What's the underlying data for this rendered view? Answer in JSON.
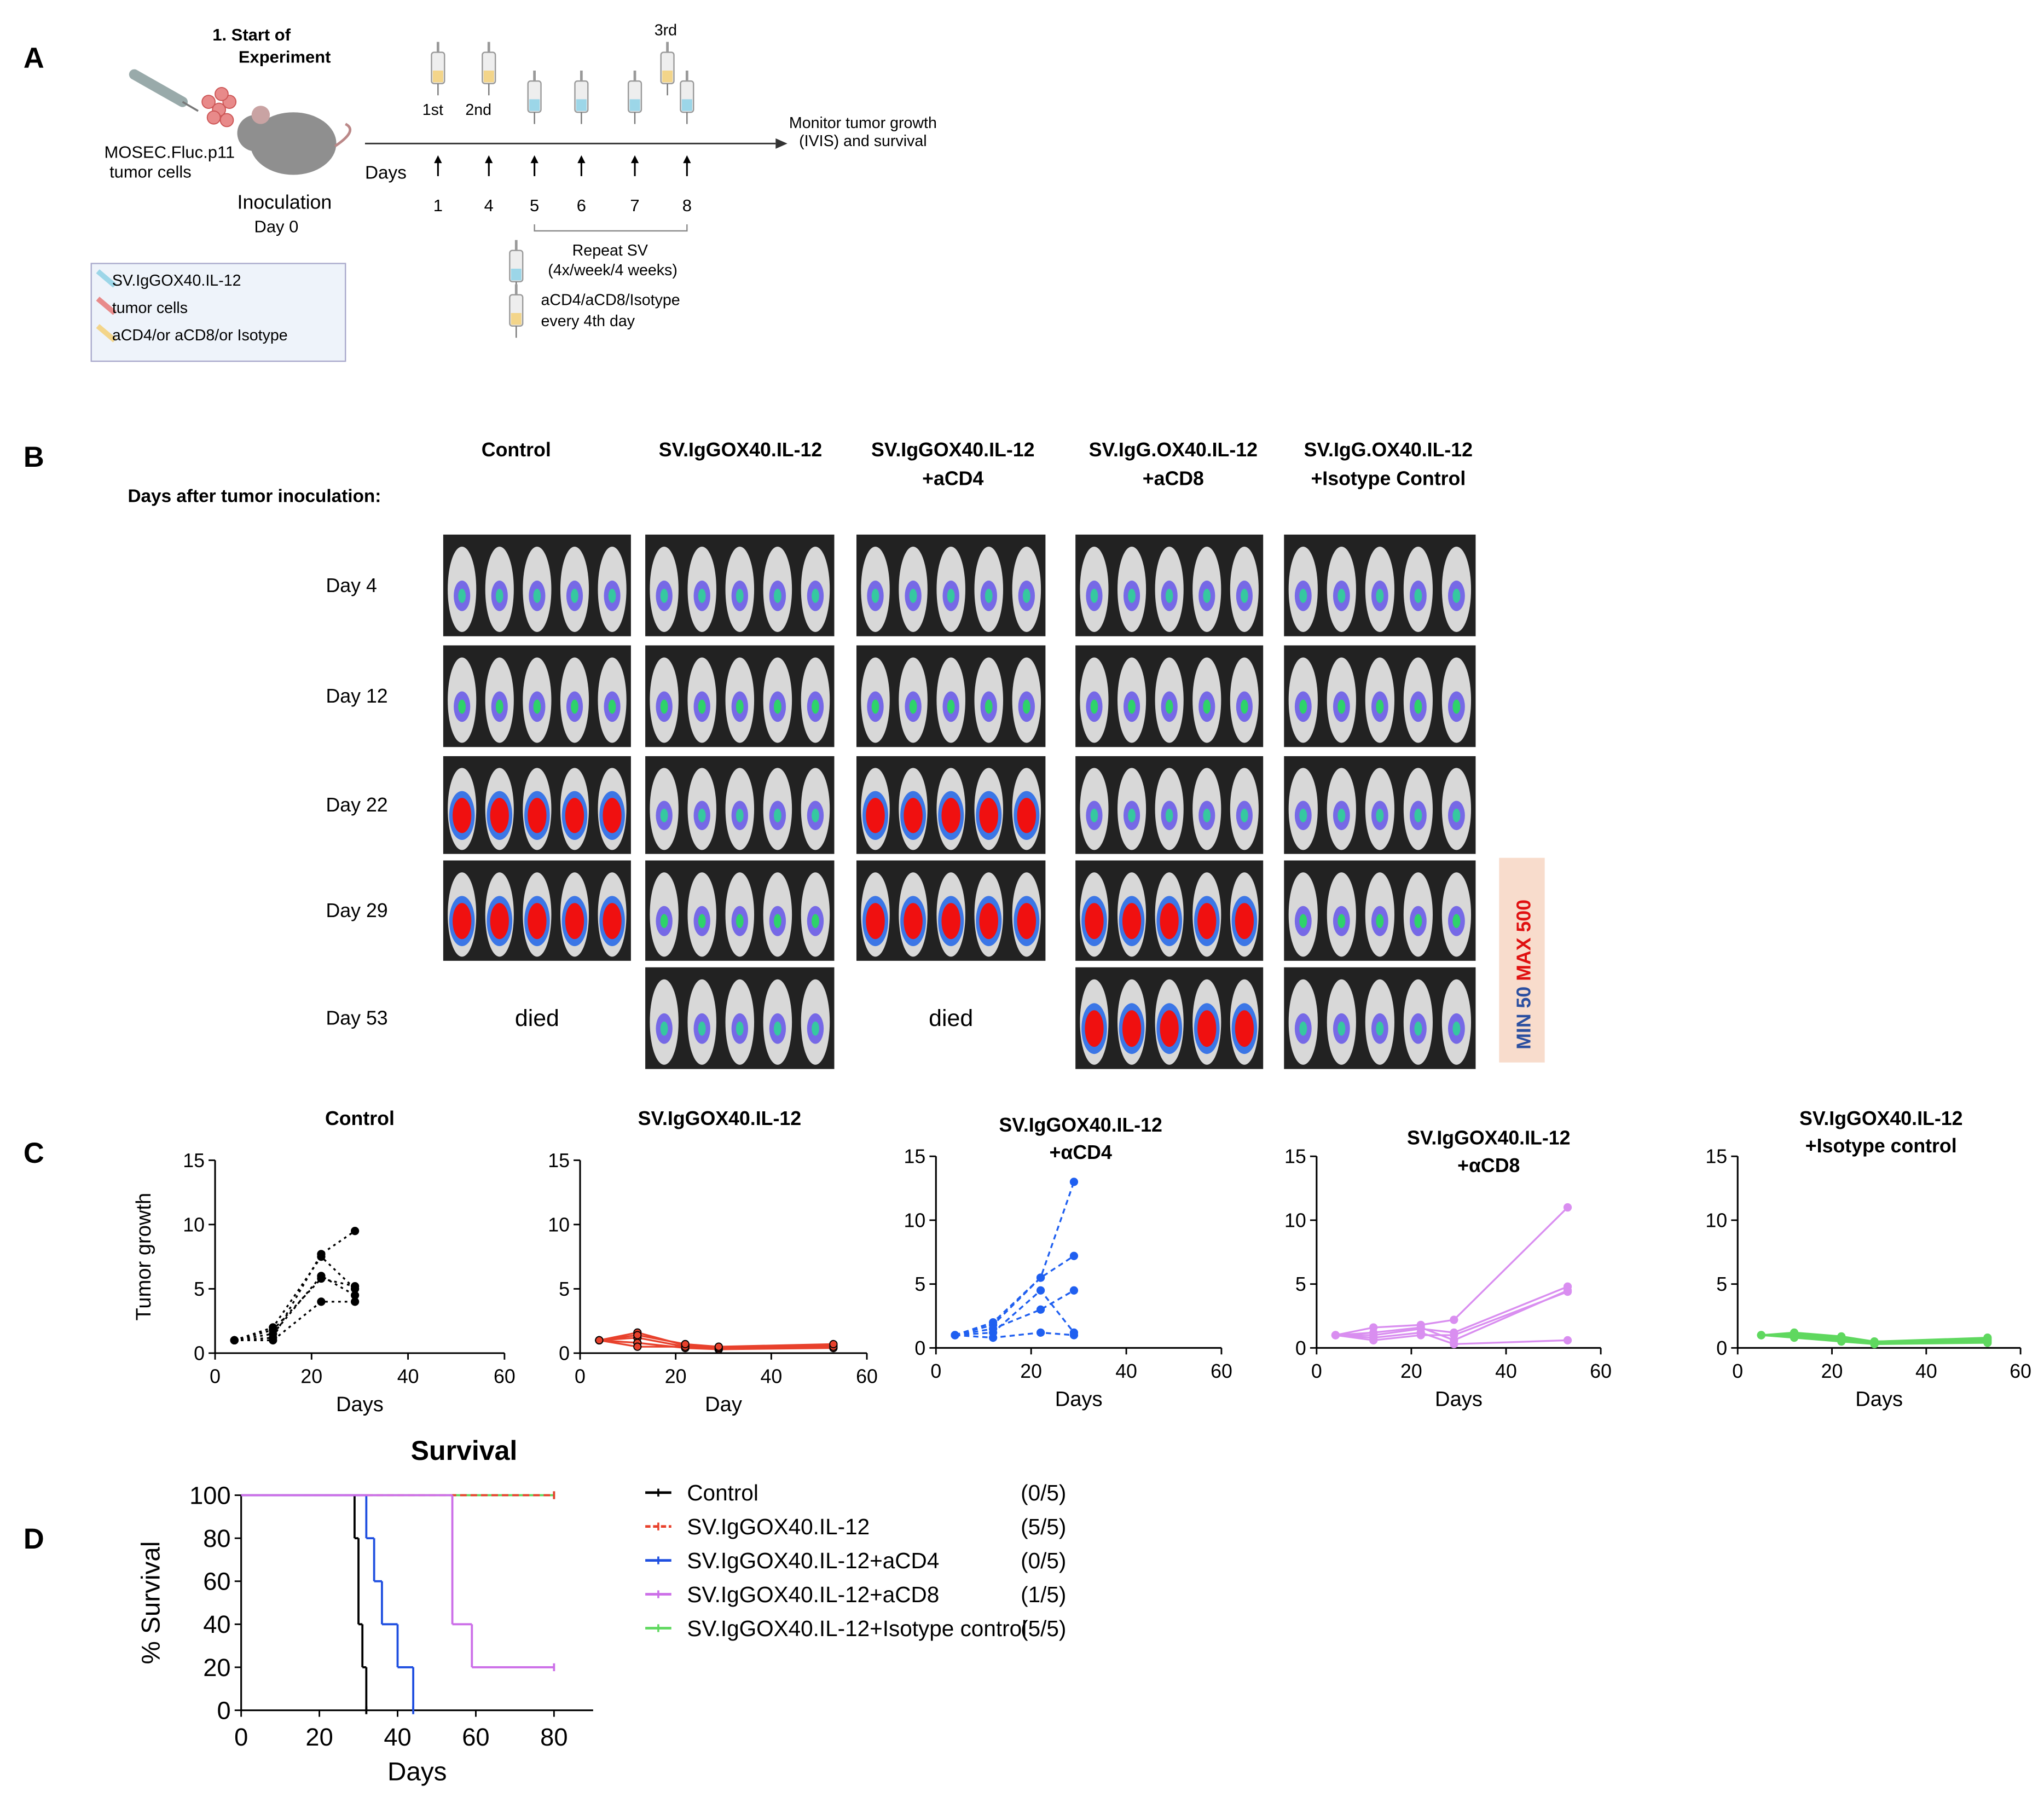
{
  "panel_a": {
    "label": "A",
    "start_title": [
      "1. Start of",
      "Experiment"
    ],
    "cells": [
      "MOSEC.Fluc.p11",
      "tumor cells"
    ],
    "inoculation": "Inoculation",
    "day0": "Day 0",
    "days_label": "Days",
    "days": [
      1,
      4,
      5,
      6,
      7,
      8
    ],
    "injections": [
      "1st",
      "2nd",
      "3rd"
    ],
    "monitor": [
      "Monitor tumor growth",
      "(IVIS) and survival"
    ],
    "repeat": [
      "Repeat SV",
      "(4x/week/4 weeks)"
    ],
    "antibody": [
      "aCD4/aCD8/Isotype",
      "every 4th day"
    ],
    "legend": [
      "SV.IgGOX40.IL-12",
      "tumor cells",
      "aCD4/or aCD8/or Isotype"
    ]
  },
  "panel_b": {
    "label": "B",
    "columns": [
      [
        "Control"
      ],
      [
        "SV.IgGOX40.IL-12"
      ],
      [
        "SV.IgGOX40.IL-12",
        "+aCD4"
      ],
      [
        "SV.IgG.OX40.IL-12",
        "+aCD8"
      ],
      [
        "SV.IgG.OX40.IL-12",
        "+Isotype Control"
      ]
    ],
    "row_heading": "Days after tumor inoculation:",
    "rows": [
      "Day 4",
      "Day 12",
      "Day 22",
      "Day 29",
      "Day 53"
    ],
    "day53_status": [
      "died",
      null,
      "died",
      null,
      null
    ],
    "scale_min": "MIN 50",
    "scale_max": "MAX 500"
  },
  "panel_c_label": "C",
  "panel_d_label": "D",
  "chart_data": [
    {
      "type": "line",
      "title": [
        "Control"
      ],
      "xlabel": "Days",
      "ylabel": "Tumor growth",
      "x": [
        4,
        12,
        22,
        29
      ],
      "xlim": [
        0,
        60
      ],
      "xticks": [
        0,
        20,
        40,
        60
      ],
      "ylim": [
        0,
        15
      ],
      "yticks": [
        0,
        5,
        10,
        15
      ],
      "dash": "dotted",
      "series": [
        {
          "color": "#000000",
          "values": [
            1,
            1.2,
            7.7,
            9.5
          ]
        },
        {
          "color": "#000000",
          "values": [
            1,
            2,
            7.5,
            5
          ]
        },
        {
          "color": "#000000",
          "values": [
            1,
            1.5,
            6,
            4.5
          ]
        },
        {
          "color": "#000000",
          "values": [
            1,
            1,
            4,
            4
          ]
        },
        {
          "color": "#000000",
          "values": [
            1,
            1.8,
            5.8,
            5.2
          ]
        }
      ]
    },
    {
      "type": "line",
      "title": [
        "SV.IgGOX40.IL-12"
      ],
      "xlabel": "Day",
      "x": [
        4,
        12,
        22,
        29,
        53
      ],
      "xlim": [
        0,
        60
      ],
      "xticks": [
        0,
        20,
        40,
        60
      ],
      "ylim": [
        0,
        15
      ],
      "yticks": [
        0,
        5,
        10,
        15
      ],
      "dash": "solid",
      "series": [
        {
          "color": "#e8412c",
          "values": [
            1,
            1.6,
            0.6,
            0.4,
            0.6
          ]
        },
        {
          "color": "#e8412c",
          "values": [
            1,
            1.2,
            0.5,
            0.3,
            0.5
          ]
        },
        {
          "color": "#e8412c",
          "values": [
            1,
            0.8,
            0.4,
            0.3,
            0.4
          ]
        },
        {
          "color": "#e8412c",
          "values": [
            1,
            0.5,
            0.5,
            0.4,
            0.5
          ]
        },
        {
          "color": "#e8412c",
          "values": [
            1,
            1.4,
            0.7,
            0.5,
            0.7
          ]
        }
      ]
    },
    {
      "type": "line",
      "title": [
        "SV.IgGOX40.IL-12",
        "+αCD4"
      ],
      "xlabel": "Days",
      "x": [
        4,
        12,
        22,
        29
      ],
      "xlim": [
        0,
        60
      ],
      "xticks": [
        0,
        20,
        40,
        60
      ],
      "ylim": [
        0,
        15
      ],
      "yticks": [
        0,
        5,
        10,
        15
      ],
      "dash": "dashed",
      "series": [
        {
          "color": "#1f5ff0",
          "values": [
            1,
            2,
            5.5,
            13
          ]
        },
        {
          "color": "#1f5ff0",
          "values": [
            1,
            1.8,
            5.5,
            7.2
          ]
        },
        {
          "color": "#1f5ff0",
          "values": [
            1,
            1.5,
            3,
            4.5
          ]
        },
        {
          "color": "#1f5ff0",
          "values": [
            1,
            1.2,
            4.5,
            1.2
          ]
        },
        {
          "color": "#1f5ff0",
          "values": [
            1,
            0.8,
            1.2,
            1
          ]
        }
      ]
    },
    {
      "type": "line",
      "title": [
        "SV.IgGOX40.IL-12",
        "+αCD8"
      ],
      "xlabel": "Days",
      "x": [
        4,
        12,
        22,
        29,
        53
      ],
      "xlim": [
        0,
        60
      ],
      "xticks": [
        0,
        20,
        40,
        60
      ],
      "ylim": [
        0,
        15
      ],
      "yticks": [
        0,
        5,
        10,
        15
      ],
      "dash": "solid",
      "series": [
        {
          "color": "#d98ef0",
          "values": [
            1,
            1.6,
            1.8,
            2.2,
            11
          ]
        },
        {
          "color": "#d98ef0",
          "values": [
            1,
            1,
            1.5,
            1.2,
            4.8
          ]
        },
        {
          "color": "#d98ef0",
          "values": [
            1,
            0.6,
            1,
            1,
            4.4
          ]
        },
        {
          "color": "#d98ef0",
          "values": [
            1,
            0.8,
            1.2,
            0.3,
            0.6
          ]
        },
        {
          "color": "#d98ef0",
          "values": [
            1,
            1.2,
            1.6,
            0.6,
            4.5
          ]
        }
      ]
    },
    {
      "type": "line",
      "title": [
        "SV.IgGOX40.IL-12",
        "+Isotype control"
      ],
      "xlabel": "Days",
      "x": [
        5,
        12,
        22,
        29,
        53
      ],
      "xlim": [
        0,
        60
      ],
      "xticks": [
        0,
        20,
        40,
        60
      ],
      "ylim": [
        0,
        15
      ],
      "yticks": [
        0,
        5,
        10,
        15
      ],
      "dash": "solid",
      "series": [
        {
          "color": "#5fd85f",
          "values": [
            1,
            1.2,
            0.9,
            0.5,
            0.8
          ]
        },
        {
          "color": "#5fd85f",
          "values": [
            1,
            1,
            0.7,
            0.4,
            0.6
          ]
        },
        {
          "color": "#5fd85f",
          "values": [
            1,
            0.8,
            0.5,
            0.3,
            0.4
          ]
        },
        {
          "color": "#5fd85f",
          "values": [
            1,
            1.1,
            0.8,
            0.5,
            0.7
          ]
        },
        {
          "color": "#5fd85f",
          "values": [
            1,
            0.9,
            0.6,
            0.4,
            0.5
          ]
        }
      ]
    },
    {
      "type": "step",
      "title": [
        "Survival"
      ],
      "xlabel": "Days",
      "ylabel": "% Survival",
      "xlim": [
        0,
        90
      ],
      "xticks": [
        0,
        20,
        40,
        60,
        80
      ],
      "ylim": [
        0,
        100
      ],
      "yticks": [
        0,
        20,
        40,
        60,
        80,
        100
      ],
      "series": [
        {
          "name": "Control",
          "label": "(0/5)",
          "color": "#000000",
          "x": [
            0,
            29,
            30,
            31,
            32
          ],
          "values": [
            100,
            80,
            40,
            20,
            0
          ]
        },
        {
          "name": "SV.IgGOX40.IL-12+Isotype control",
          "label": "(5/5)",
          "color": "#5fd85f",
          "x": [
            0,
            80
          ],
          "values": [
            100,
            100
          ]
        },
        {
          "name": "SV.IgGOX40.IL-12",
          "label": "(5/5)",
          "color": "#e8412c",
          "x": [
            0,
            80
          ],
          "values": [
            100,
            100
          ]
        },
        {
          "name": "SV.IgGOX40.IL-12+aCD4",
          "label": "(0/5)",
          "color": "#1f4fe0",
          "x": [
            0,
            32,
            34,
            36,
            40,
            44
          ],
          "values": [
            100,
            80,
            60,
            40,
            20,
            0
          ]
        },
        {
          "name": "SV.IgGOX40.IL-12+aCD8",
          "label": "(1/5)",
          "color": "#cc6ee8",
          "x": [
            0,
            54,
            59,
            80
          ],
          "values": [
            100,
            40,
            20,
            20
          ]
        }
      ]
    }
  ]
}
